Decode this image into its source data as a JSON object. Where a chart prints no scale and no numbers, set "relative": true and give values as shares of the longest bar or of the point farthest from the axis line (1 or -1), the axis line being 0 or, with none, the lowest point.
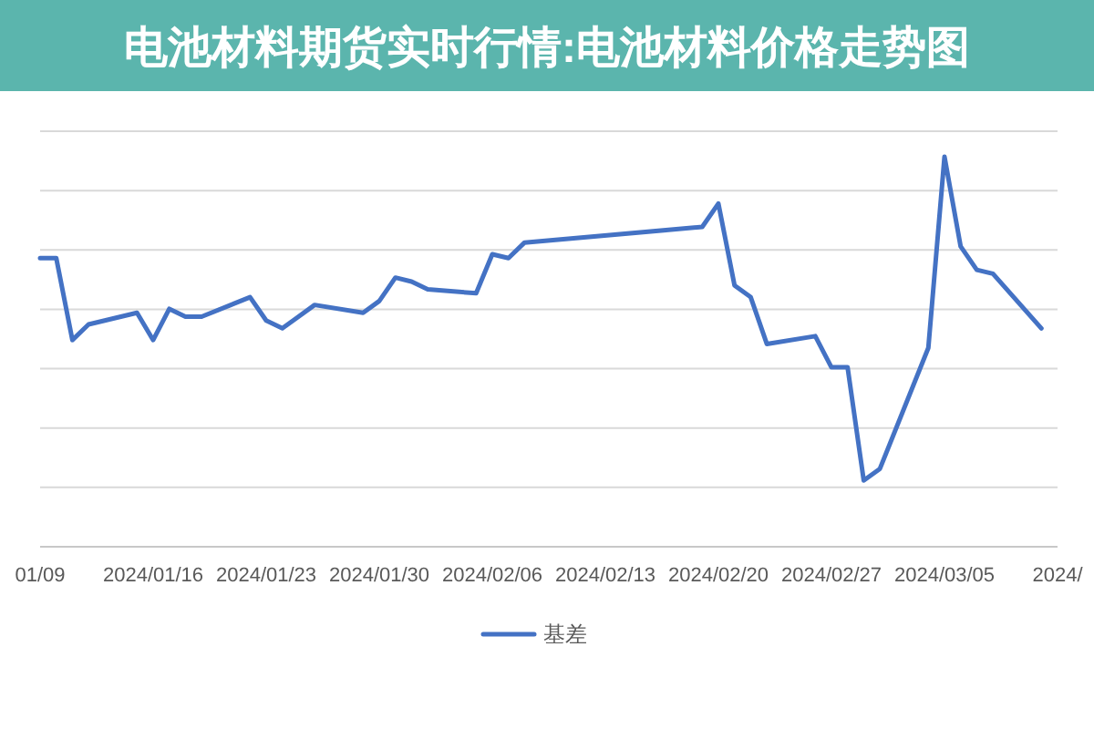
{
  "chart_data": {
    "type": "line",
    "title": "电池材料期货实时行情:电池材料价格走势图",
    "x": [
      "2024-01-09",
      "2024-01-10",
      "2024-01-11",
      "2024-01-12",
      "2024-01-15",
      "2024-01-16",
      "2024-01-17",
      "2024-01-18",
      "2024-01-19",
      "2024-01-22",
      "2024-01-23",
      "2024-01-24",
      "2024-01-25",
      "2024-01-26",
      "2024-01-29",
      "2024-01-30",
      "2024-01-31",
      "2024-02-01",
      "2024-02-02",
      "2024-02-05",
      "2024-02-06",
      "2024-02-07",
      "2024-02-08",
      "2024-02-19",
      "2024-02-20",
      "2024-02-21",
      "2024-02-22",
      "2024-02-23",
      "2024-02-26",
      "2024-02-27",
      "2024-02-28",
      "2024-02-29",
      "2024-03-01",
      "2024-03-04",
      "2024-03-05",
      "2024-03-06",
      "2024-03-07",
      "2024-03-08",
      "2024-03-11"
    ],
    "series": [
      {
        "name": "基差",
        "color": "#4472c4",
        "values": [
          0.74,
          0.74,
          0.53,
          0.57,
          0.6,
          0.53,
          0.61,
          0.59,
          0.59,
          0.64,
          0.58,
          0.56,
          0.59,
          0.62,
          0.6,
          0.63,
          0.69,
          0.68,
          0.66,
          0.65,
          0.75,
          0.74,
          0.78,
          0.82,
          0.88,
          0.67,
          0.64,
          0.52,
          0.54,
          0.46,
          0.46,
          0.17,
          0.2,
          0.51,
          1,
          0.77,
          0.71,
          0.7,
          0.56
        ]
      }
    ],
    "relative": true,
    "xlim": [
      "2024-01-09",
      "2024-03-12"
    ],
    "xticks": [
      {
        "value": "2024-01-09",
        "label": "01/09"
      },
      {
        "value": "2024-01-16",
        "label": "2024/01/16"
      },
      {
        "value": "2024-01-23",
        "label": "2024/01/23"
      },
      {
        "value": "2024-01-30",
        "label": "2024/01/30"
      },
      {
        "value": "2024-02-06",
        "label": "2024/02/06"
      },
      {
        "value": "2024-02-13",
        "label": "2024/02/13"
      },
      {
        "value": "2024-02-20",
        "label": "2024/02/20"
      },
      {
        "value": "2024-02-27",
        "label": "2024/02/27"
      },
      {
        "value": "2024-03-05",
        "label": "2024/03/05"
      },
      {
        "value": "2024-03-12",
        "label": "2024/"
      }
    ],
    "grid": "y",
    "legend": "bottom"
  }
}
